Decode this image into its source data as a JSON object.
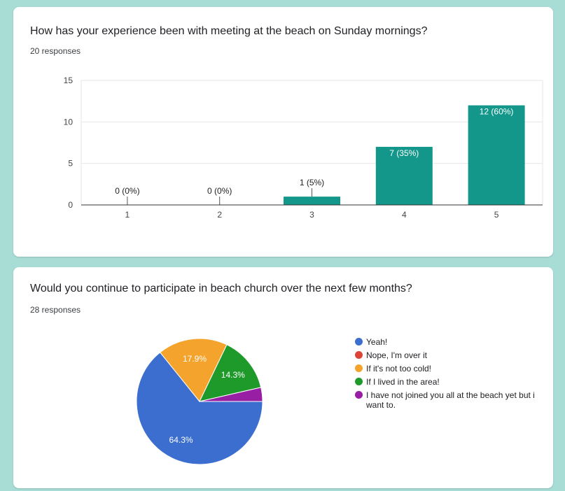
{
  "questions": [
    {
      "title": "How has your experience been with meeting at the beach on Sunday mornings?",
      "responses": "20 responses"
    },
    {
      "title": "Would you continue to participate in beach church over the next few months?",
      "responses": "28 responses"
    }
  ],
  "colors": {
    "bar": "#12978a",
    "pie": [
      "#3b6ecf",
      "#db4437",
      "#f4a32c",
      "#1e9a2b",
      "#981ea3"
    ]
  },
  "chart_data": [
    {
      "type": "bar",
      "categories": [
        "1",
        "2",
        "3",
        "4",
        "5"
      ],
      "values": [
        0,
        0,
        1,
        7,
        12
      ],
      "labels": [
        "0 (0%)",
        "0 (0%)",
        "1 (5%)",
        "7 (35%)",
        "12 (60%)"
      ],
      "yticks": [
        "0",
        "5",
        "10",
        "15"
      ],
      "ylim": [
        0,
        15
      ],
      "grid": true
    },
    {
      "type": "pie",
      "labels": [
        "Yeah!",
        "Nope, I'm over it",
        "If it's not too cold!",
        "If I lived in the area!",
        "I have not joined you all at the beach yet but i want to."
      ],
      "values": [
        64.3,
        0,
        17.9,
        14.3,
        3.6
      ],
      "slice_labels": [
        "64.3%",
        "",
        "17.9%",
        "14.3%",
        ""
      ],
      "legend": "right"
    }
  ]
}
